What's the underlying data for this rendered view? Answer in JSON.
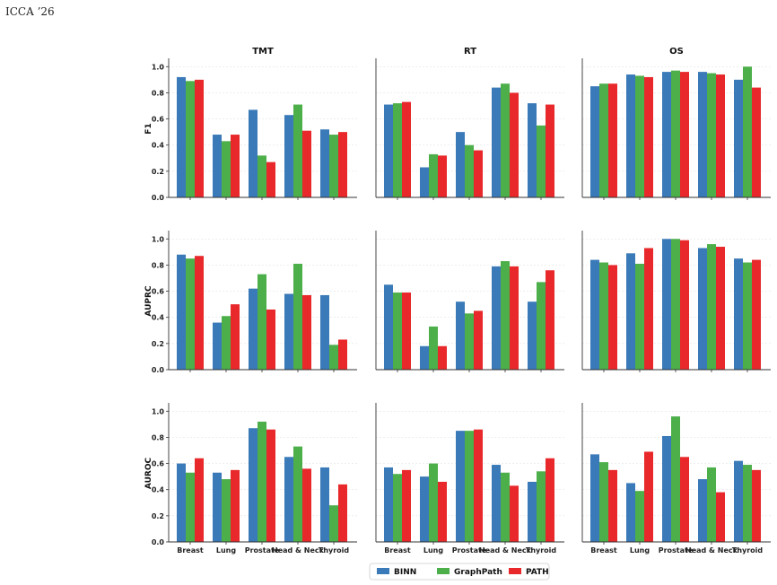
{
  "header": {
    "venue": "ICCA ’26"
  },
  "colors": {
    "BINN": "#3a7ab8",
    "GraphPath": "#4caf4a",
    "PATH": "#e8282a"
  },
  "chart_data": {
    "type": "bar",
    "layout": "grid",
    "columns": [
      "TMT",
      "RT",
      "OS"
    ],
    "rows": [
      "F1",
      "AUPRC",
      "AUROC"
    ],
    "categories": [
      "Breast",
      "Lung",
      "Prostate",
      "Head & Neck",
      "Thyroid"
    ],
    "series_names": [
      "BINN",
      "GraphPath",
      "PATH"
    ],
    "ylim": [
      0,
      1.05
    ],
    "yticks": [
      "0.0",
      "0.2",
      "0.4",
      "0.6",
      "0.8",
      "1.0"
    ],
    "grid": "horizontal",
    "legend": "bottom-center",
    "panels": {
      "F1": {
        "TMT": {
          "BINN": [
            0.92,
            0.48,
            0.67,
            0.63,
            0.52
          ],
          "GraphPath": [
            0.89,
            0.43,
            0.32,
            0.71,
            0.48
          ],
          "PATH": [
            0.9,
            0.48,
            0.27,
            0.51,
            0.5
          ]
        },
        "RT": {
          "BINN": [
            0.71,
            0.23,
            0.5,
            0.84,
            0.72
          ],
          "GraphPath": [
            0.72,
            0.33,
            0.4,
            0.87,
            0.55
          ],
          "PATH": [
            0.73,
            0.32,
            0.36,
            0.8,
            0.71
          ]
        },
        "OS": {
          "BINN": [
            0.85,
            0.94,
            0.96,
            0.96,
            0.9
          ],
          "GraphPath": [
            0.87,
            0.93,
            0.97,
            0.95,
            1.0
          ],
          "PATH": [
            0.87,
            0.92,
            0.96,
            0.94,
            0.84
          ]
        }
      },
      "AUPRC": {
        "TMT": {
          "BINN": [
            0.88,
            0.36,
            0.62,
            0.58,
            0.57
          ],
          "GraphPath": [
            0.85,
            0.41,
            0.73,
            0.81,
            0.19
          ],
          "PATH": [
            0.87,
            0.5,
            0.46,
            0.57,
            0.23
          ]
        },
        "RT": {
          "BINN": [
            0.65,
            0.18,
            0.52,
            0.79,
            0.52
          ],
          "GraphPath": [
            0.59,
            0.33,
            0.43,
            0.83,
            0.67
          ],
          "PATH": [
            0.59,
            0.18,
            0.45,
            0.79,
            0.76
          ]
        },
        "OS": {
          "BINN": [
            0.84,
            0.89,
            1.0,
            0.93,
            0.85
          ],
          "GraphPath": [
            0.82,
            0.81,
            1.0,
            0.96,
            0.82
          ],
          "PATH": [
            0.8,
            0.93,
            0.99,
            0.94,
            0.84
          ]
        }
      },
      "AUROC": {
        "TMT": {
          "BINN": [
            0.6,
            0.53,
            0.87,
            0.65,
            0.57
          ],
          "GraphPath": [
            0.53,
            0.48,
            0.92,
            0.73,
            0.28
          ],
          "PATH": [
            0.64,
            0.55,
            0.86,
            0.56,
            0.44
          ]
        },
        "RT": {
          "BINN": [
            0.57,
            0.5,
            0.85,
            0.59,
            0.46
          ],
          "GraphPath": [
            0.52,
            0.6,
            0.85,
            0.53,
            0.54
          ],
          "PATH": [
            0.55,
            0.46,
            0.86,
            0.43,
            0.64
          ]
        },
        "OS": {
          "BINN": [
            0.67,
            0.45,
            0.81,
            0.48,
            0.62
          ],
          "GraphPath": [
            0.61,
            0.39,
            0.96,
            0.57,
            0.59
          ],
          "PATH": [
            0.55,
            0.69,
            0.65,
            0.38,
            0.55
          ]
        }
      }
    }
  }
}
